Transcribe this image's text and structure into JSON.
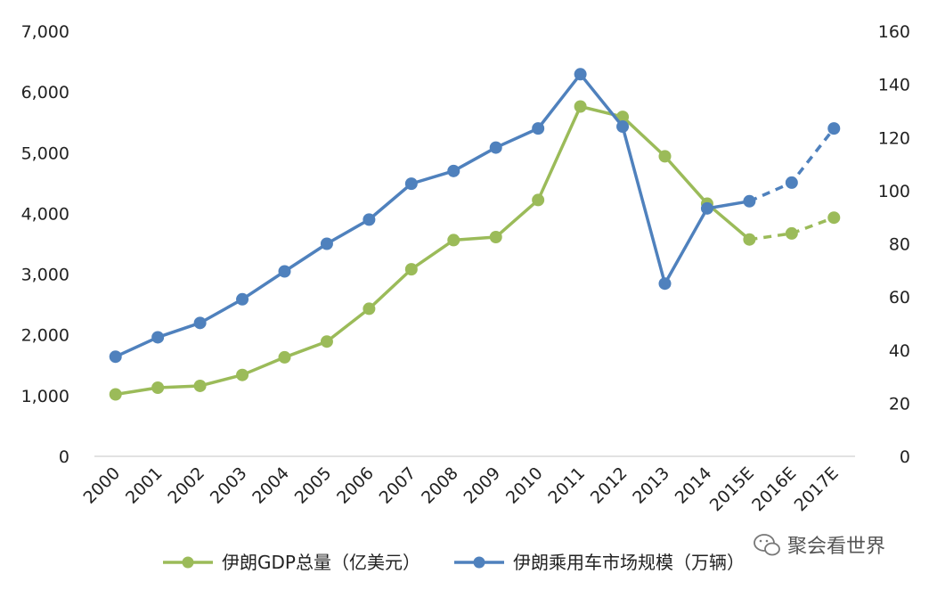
{
  "chart_data": {
    "type": "line",
    "categories": [
      "2000",
      "2001",
      "2002",
      "2003",
      "2004",
      "2005",
      "2006",
      "2007",
      "2008",
      "2009",
      "2010",
      "2011",
      "2012",
      "2013",
      "2014",
      "2015E",
      "2016E",
      "2017E"
    ],
    "yaxis_left": {
      "ticks": [
        "0",
        "1,000",
        "2,000",
        "3,000",
        "4,000",
        "5,000",
        "6,000",
        "7,000"
      ],
      "ylim": [
        0,
        7000
      ]
    },
    "yaxis_right": {
      "ticks": [
        "0",
        "20",
        "40",
        "60",
        "80",
        "100",
        "120",
        "140",
        "160"
      ],
      "ylim": [
        0,
        160
      ]
    },
    "series": [
      {
        "name": "伊朗GDP总量（亿美元）",
        "axis": "left",
        "color": "#9BBB59",
        "values": [
          1020,
          1130,
          1160,
          1340,
          1630,
          1890,
          2430,
          3080,
          3560,
          3610,
          4220,
          5760,
          5590,
          4940,
          4160,
          3570,
          3670,
          3930
        ],
        "forecast_from_index": 15
      },
      {
        "name": "伊朗乘用车市场规模（万辆）",
        "axis": "right",
        "color": "#4F81BD",
        "values": [
          37.5,
          44.8,
          50.2,
          59.1,
          69.6,
          80.0,
          89.1,
          102.6,
          107.4,
          116.2,
          123.4,
          143.8,
          124.1,
          65.0,
          93.3,
          96.0,
          103.0,
          123.4
        ],
        "forecast_from_index": 15
      }
    ],
    "legend_position": "bottom",
    "grid": false
  },
  "watermark": {
    "text": "聚会看世界",
    "icon": "wechat-icon"
  }
}
